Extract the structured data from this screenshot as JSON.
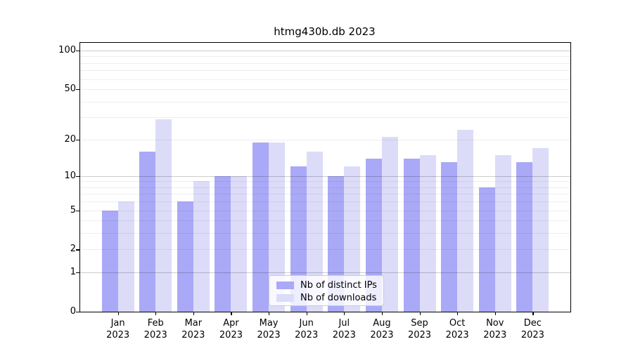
{
  "title": "htmg430b.db 2023",
  "colors": {
    "background": "#ffffff",
    "grid_major": "#c9c9c9",
    "grid_minor": "#ededed",
    "axis": "#000000",
    "legend_border": "#cccccc"
  },
  "chart_data": {
    "type": "bar",
    "title": "htmg430b.db 2023",
    "scale_y": "log10(1+x)",
    "ylim": [
      0,
      100
    ],
    "y_tick_labels": [
      "0",
      "1",
      "2",
      "5",
      "10",
      "20",
      "50",
      "100"
    ],
    "grid": "on",
    "legend_position": "lower center",
    "months": [
      "Jan",
      "Feb",
      "Mar",
      "Apr",
      "May",
      "Jun",
      "Jul",
      "Aug",
      "Sep",
      "Oct",
      "Nov",
      "Dec"
    ],
    "year": "2023",
    "categories": [
      "Jan 2023",
      "Feb 2023",
      "Mar 2023",
      "Apr 2023",
      "May 2023",
      "Jun 2023",
      "Jul 2023",
      "Aug 2023",
      "Sep 2023",
      "Oct 2023",
      "Nov 2023",
      "Dec 2023"
    ],
    "series": [
      {
        "name": "Nb of distinct IPs",
        "color": "#a9a9f7",
        "values": [
          5,
          16,
          6,
          10,
          19,
          12,
          10,
          14,
          14,
          13,
          8,
          13
        ]
      },
      {
        "name": "Nb of downloads",
        "color": "#dcdcf9",
        "values": [
          6,
          29,
          9,
          10,
          19,
          16,
          12,
          21,
          15,
          24,
          15,
          17
        ]
      }
    ]
  }
}
